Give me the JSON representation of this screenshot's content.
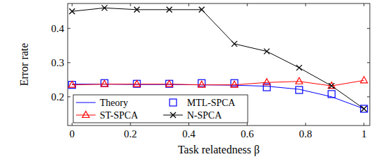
{
  "chart_data": {
    "type": "line",
    "x_label": "Task relatedness β",
    "y_label": "Error rate",
    "x": [
      0,
      0.111,
      0.222,
      0.333,
      0.444,
      0.556,
      0.667,
      0.778,
      0.889,
      1
    ],
    "series": [
      {
        "name": "Theory",
        "color": "#0000ff",
        "marker": "none",
        "line_style": "solid",
        "values": [
          0.237,
          0.237,
          0.236,
          0.236,
          0.235,
          0.234,
          0.231,
          0.222,
          0.2,
          0.165
        ]
      },
      {
        "name": "MTL-SPCA",
        "color": "#0000ff",
        "marker": "square",
        "line_style": "none",
        "values": [
          0.235,
          0.24,
          0.238,
          0.238,
          0.24,
          0.24,
          0.228,
          0.22,
          0.208,
          0.165
        ]
      },
      {
        "name": "ST-SPCA",
        "color": "#ff0000",
        "marker": "triangle",
        "line_style": "solid",
        "values": [
          0.235,
          0.237,
          0.237,
          0.237,
          0.235,
          0.235,
          0.242,
          0.245,
          0.232,
          0.248
        ]
      },
      {
        "name": "N-SPCA",
        "color": "#000000",
        "marker": "x",
        "line_style": "solid",
        "values": [
          0.45,
          0.46,
          0.455,
          0.455,
          0.455,
          0.355,
          0.333,
          0.285,
          0.232,
          0.165
        ]
      }
    ],
    "xlim": [
      -0.015,
      1.02
    ],
    "ylim": [
      0.116,
      0.473
    ],
    "xticks": [
      0,
      0.2,
      0.4,
      0.6,
      0.8,
      1
    ],
    "yticks": [
      0.2,
      0.3,
      0.4
    ],
    "grid": false,
    "legend": "lower left"
  }
}
